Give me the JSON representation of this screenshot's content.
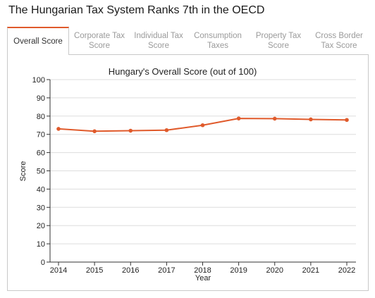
{
  "header": {
    "title": "The Hungarian Tax System Ranks 7th in the OECD"
  },
  "tabs": [
    {
      "label": "Overall Score",
      "active": true
    },
    {
      "label": "Corporate Tax Score",
      "active": false
    },
    {
      "label": "Individual Tax Score",
      "active": false
    },
    {
      "label": "Consumption Taxes",
      "active": false
    },
    {
      "label": "Property Tax Score",
      "active": false
    },
    {
      "label": "Cross Border Tax Score",
      "active": false
    }
  ],
  "colors": {
    "accent": "#e05a2b",
    "line": "#e05a2b",
    "grid": "#dddddd"
  },
  "chart_data": {
    "type": "line",
    "title": "Hungary's Overall Score (out of 100)",
    "xlabel": "Year",
    "ylabel": "Score",
    "x": [
      "2014",
      "2015",
      "2016",
      "2017",
      "2018",
      "2019",
      "2020",
      "2021",
      "2022"
    ],
    "series": [
      {
        "values": [
          73.0,
          71.7,
          72.0,
          72.3,
          75.0,
          78.7,
          78.6,
          78.2,
          77.9
        ]
      }
    ],
    "ylim": [
      0,
      100
    ],
    "yticks": [
      0,
      10,
      20,
      30,
      40,
      50,
      60,
      70,
      80,
      90,
      100
    ],
    "grid": true,
    "legend": "none"
  }
}
